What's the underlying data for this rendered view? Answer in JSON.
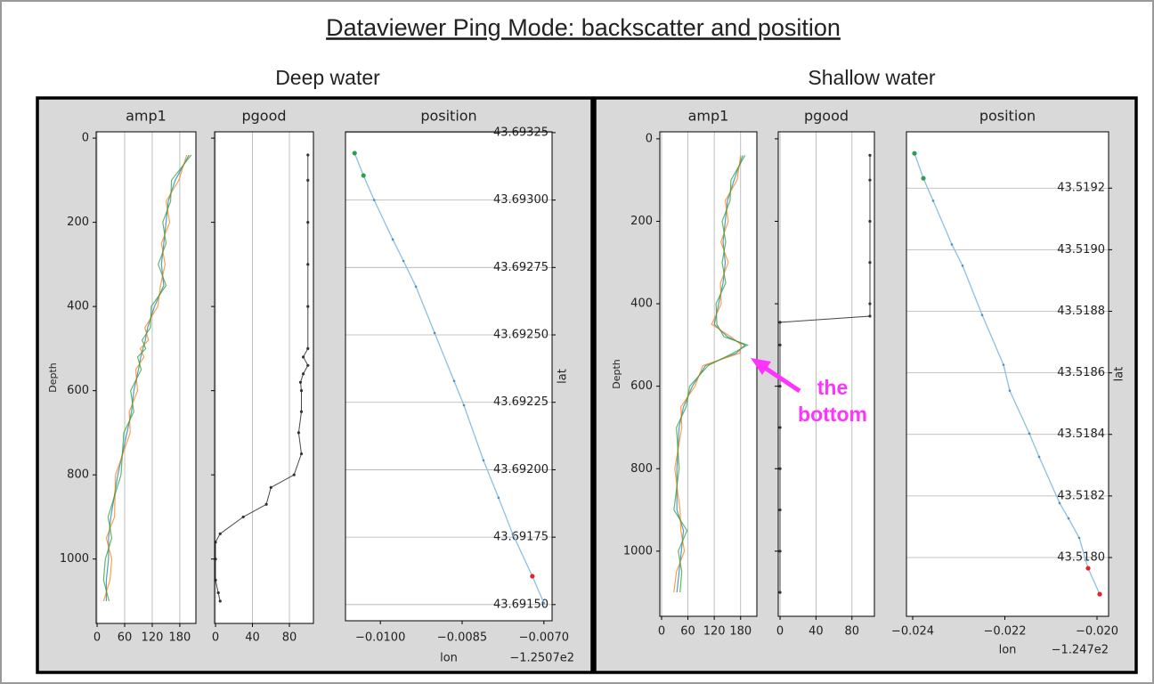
{
  "title": "Dataviewer Ping Mode: backscatter and position",
  "panels": [
    {
      "title": "Deep water"
    },
    {
      "title": "Shallow water"
    }
  ],
  "annotation": {
    "lines": [
      "the",
      "bottom"
    ],
    "color": "#ff33ff"
  },
  "chart_data": [
    {
      "type": "profile",
      "title": "amp1",
      "ylabel": "Depth",
      "grid": "x",
      "show_yticklabels": true,
      "xlim": [
        -2,
        215
      ],
      "xticks": [
        0,
        60,
        120,
        180
      ],
      "ylim": [
        1153,
        -15
      ],
      "yticks": [
        0,
        200,
        400,
        600,
        800,
        1000
      ],
      "y": [
        40,
        100,
        150,
        200,
        250,
        300,
        350,
        400,
        450,
        480,
        500,
        520,
        550,
        600,
        650,
        700,
        800,
        900,
        950,
        1000,
        1050,
        1100
      ],
      "series": [
        {
          "color": "#1f77b4",
          "values": [
            200,
            170,
            155,
            150,
            145,
            140,
            145,
            125,
            110,
            105,
            100,
            95,
            90,
            80,
            75,
            65,
            45,
            30,
            25,
            25,
            20,
            20
          ]
        },
        {
          "color": "#ff7f0e",
          "values": [
            195,
            178,
            150,
            158,
            140,
            148,
            138,
            132,
            104,
            112,
            94,
            102,
            84,
            88,
            70,
            72,
            40,
            38,
            20,
            32,
            28,
            14
          ]
        },
        {
          "color": "#2ca02c",
          "values": [
            205,
            162,
            160,
            143,
            150,
            133,
            150,
            118,
            116,
            98,
            106,
            88,
            96,
            73,
            80,
            58,
            52,
            24,
            32,
            18,
            14,
            26
          ]
        }
      ]
    },
    {
      "type": "profile",
      "title": "pgood",
      "grid": "x",
      "show_yticklabels": false,
      "markers": true,
      "xlim": [
        -1,
        106
      ],
      "xticks": [
        0,
        40,
        80
      ],
      "ylim": [
        1153,
        -15
      ],
      "yticks": [
        0,
        200,
        400,
        600,
        800,
        1000
      ],
      "y": [
        40,
        100,
        200,
        300,
        400,
        500,
        520,
        540,
        560,
        580,
        600,
        650,
        700,
        750,
        800,
        830,
        870,
        900,
        940,
        960,
        1000,
        1050,
        1080,
        1100
      ],
      "series": [
        {
          "color": "#333333",
          "values": [
            100,
            100,
            100,
            100,
            100,
            100,
            95,
            100,
            95,
            92,
            93,
            93,
            90,
            93,
            85,
            60,
            55,
            30,
            5,
            0,
            0,
            0,
            3,
            5
          ]
        }
      ]
    },
    {
      "type": "line",
      "title": "position",
      "xlabel": "lon",
      "ylabel": "lat",
      "x_offset": "−1.2507e2",
      "grid": "y",
      "color": "#8cbfe0",
      "xlim": [
        -0.01064,
        -0.00685
      ],
      "xticks": [
        {
          "value": -0.01,
          "label": "−0.0100"
        },
        {
          "value": -0.0085,
          "label": "−0.0085"
        },
        {
          "value": -0.007,
          "label": "−0.0070"
        }
      ],
      "ylim": [
        43.69144,
        43.693253
      ],
      "yticks": [
        43.69325,
        {
          "value": 43.693,
          "label": "43.69300"
        },
        43.69275,
        {
          "value": 43.6925,
          "label": "43.69250"
        },
        43.69225,
        {
          "value": 43.692,
          "label": "43.69200"
        },
        43.69175,
        {
          "value": 43.6915,
          "label": "43.69150"
        }
      ],
      "x": [
        -0.010473,
        -0.01031,
        -0.010114,
        -0.009772,
        -0.009576,
        -0.009348,
        -0.009005,
        -0.008647,
        -0.008467,
        -0.008109,
        -0.007832,
        -0.007571,
        -0.007212,
        -0.007
      ],
      "values": [
        43.693174,
        43.693091,
        43.693,
        43.692854,
        43.692774,
        43.692679,
        43.692507,
        43.692329,
        43.692239,
        43.692035,
        43.691896,
        43.691761,
        43.691605,
        43.691506
      ],
      "point_colors": [
        "#2e9e4f",
        "#2e9e4f",
        "#4a90c8",
        "#4a90c8",
        "#4a90c8",
        "#4a90c8",
        "#4a90c8",
        "#4a90c8",
        "#4a90c8",
        "#4a90c8",
        "#4a90c8",
        "#4a90c8",
        "#e8202a",
        "#4a90c8"
      ]
    },
    {
      "type": "profile",
      "title": "amp1",
      "ylabel": "Depth",
      "grid": "x",
      "show_yticklabels": true,
      "xlim": [
        -4,
        217
      ],
      "xticks": [
        0,
        60,
        120,
        180
      ],
      "ylim": [
        1158,
        -17
      ],
      "yticks": [
        0,
        200,
        400,
        600,
        800,
        1000
      ],
      "y": [
        40,
        100,
        150,
        200,
        250,
        300,
        350,
        400,
        450,
        480,
        500,
        520,
        550,
        600,
        650,
        700,
        800,
        900,
        950,
        1000,
        1050,
        1100
      ],
      "series": [
        {
          "color": "#1f77b4",
          "values": [
            185,
            165,
            150,
            145,
            140,
            145,
            140,
            130,
            120,
            150,
            190,
            170,
            100,
            70,
            50,
            40,
            35,
            35,
            50,
            45,
            40,
            35
          ]
        },
        {
          "color": "#ff7f0e",
          "values": [
            180,
            172,
            145,
            152,
            135,
            152,
            134,
            136,
            114,
            158,
            182,
            178,
            94,
            76,
            44,
            46,
            30,
            42,
            44,
            52,
            34,
            28
          ]
        },
        {
          "color": "#2ca02c",
          "values": [
            190,
            158,
            156,
            138,
            146,
            138,
            146,
            124,
            126,
            142,
            196,
            162,
            106,
            64,
            56,
            34,
            40,
            28,
            58,
            38,
            46,
            42
          ]
        }
      ]
    },
    {
      "type": "profile",
      "title": "pgood",
      "grid": "x",
      "show_yticklabels": false,
      "markers": true,
      "xlim": [
        -2,
        105
      ],
      "xticks": [
        0,
        40,
        80
      ],
      "ylim": [
        1158,
        -17
      ],
      "yticks": [
        0,
        200,
        400,
        600,
        800,
        1000
      ],
      "y": [
        40,
        100,
        200,
        300,
        400,
        430,
        445,
        500,
        600,
        700,
        800,
        900,
        1000,
        1100
      ],
      "series": [
        {
          "color": "#333333",
          "values": [
            100,
            100,
            100,
            100,
            100,
            100,
            0,
            0,
            0,
            0,
            0,
            0,
            0,
            0
          ]
        }
      ]
    },
    {
      "type": "line",
      "title": "position",
      "xlabel": "lon",
      "ylabel": "lat",
      "x_offset": "−1.247e2",
      "grid": "y",
      "color": "#8cbfe0",
      "xlim": [
        -0.024135,
        -0.019749
      ],
      "xticks": [
        {
          "value": -0.024,
          "label": "−0.024"
        },
        {
          "value": -0.022,
          "label": "−0.022"
        },
        {
          "value": -0.02,
          "label": "−0.020"
        }
      ],
      "ylim": [
        43.517809,
        43.519383
      ],
      "yticks": [
        43.5192,
        {
          "value": 43.519,
          "label": "43.5190"
        },
        43.5188,
        43.5186,
        43.5184,
        43.5182,
        {
          "value": 43.518,
          "label": "43.5180"
        }
      ],
      "x": [
        -0.023961,
        -0.023768,
        -0.023556,
        -0.02315,
        -0.022918,
        -0.022493,
        -0.022029,
        -0.021894,
        -0.021469,
        -0.021256,
        -0.020812,
        -0.020618,
        -0.020386,
        -0.020193,
        -0.019942
      ],
      "values": [
        43.519313,
        43.519232,
        43.519159,
        43.519017,
        43.518948,
        43.518788,
        43.518626,
        43.518542,
        43.518403,
        43.518327,
        43.518177,
        43.518127,
        43.518064,
        43.517965,
        43.517881
      ],
      "point_colors": [
        "#2e9e4f",
        "#2e9e4f",
        "#4a90c8",
        "#4a90c8",
        "#4a90c8",
        "#4a90c8",
        "#4a90c8",
        "#4a90c8",
        "#4a90c8",
        "#4a90c8",
        "#4a90c8",
        "#4a90c8",
        "#4a90c8",
        "#e8202a",
        "#e8202a"
      ]
    }
  ]
}
